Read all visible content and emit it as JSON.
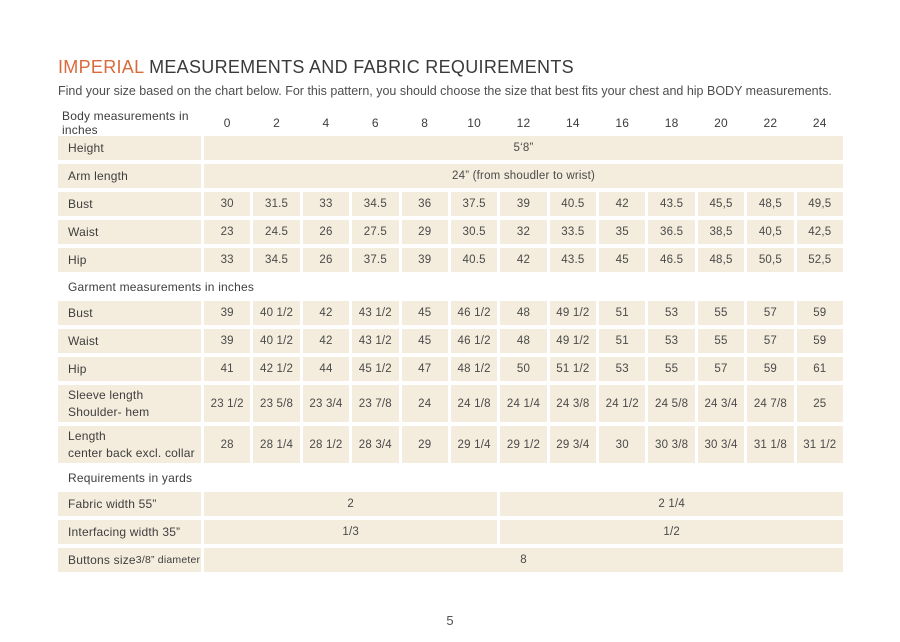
{
  "page": {
    "title_highlight": "IMPERIAL",
    "title_rest": " MEASUREMENTS AND FABRIC REQUIREMENTS",
    "subtitle": "Find your size based on the chart below. For this pattern, you should choose the size that best fits your chest and hip BODY measurements.",
    "page_number": "5"
  },
  "colors": {
    "accent_orange": "#d96a3c",
    "cell_beige": "#f4ecdd",
    "text_dark": "#3e3e3e"
  },
  "table": {
    "rows": [
      {
        "type": "header",
        "label": "Body measurements in inches",
        "cells": [
          "0",
          "2",
          "4",
          "6",
          "8",
          "10",
          "12",
          "14",
          "16",
          "18",
          "20",
          "22",
          "24"
        ]
      },
      {
        "type": "span",
        "label": "Height",
        "value": "5‘8”"
      },
      {
        "type": "span",
        "label": "Arm length",
        "value": "24” (from shoudler to wrist)"
      },
      {
        "type": "data",
        "label": "Bust",
        "cells": [
          "30",
          "31.5",
          "33",
          "34.5",
          "36",
          "37.5",
          "39",
          "40.5",
          "42",
          "43.5",
          "45,5",
          "48,5",
          "49,5"
        ]
      },
      {
        "type": "data",
        "label": "Waist",
        "cells": [
          "23",
          "24.5",
          "26",
          "27.5",
          "29",
          "30.5",
          "32",
          "33.5",
          "35",
          "36.5",
          "38,5",
          "40,5",
          "42,5"
        ]
      },
      {
        "type": "data",
        "label": "Hip",
        "cells": [
          "33",
          "34.5",
          "26",
          "37.5",
          "39",
          "40.5",
          "42",
          "43.5",
          "45",
          "46.5",
          "48,5",
          "50,5",
          "52,5"
        ]
      },
      {
        "type": "section",
        "label": "Garment measurements in inches"
      },
      {
        "type": "data",
        "label": "Bust",
        "cells": [
          "39",
          "40 1/2",
          "42",
          "43 1/2",
          "45",
          "46 1/2",
          "48",
          "49 1/2",
          "51",
          "53",
          "55",
          "57",
          "59"
        ]
      },
      {
        "type": "data",
        "label": "Waist",
        "cells": [
          "39",
          "40 1/2",
          "42",
          "43 1/2",
          "45",
          "46 1/2",
          "48",
          "49 1/2",
          "51",
          "53",
          "55",
          "57",
          "59"
        ]
      },
      {
        "type": "data",
        "label": "Hip",
        "cells": [
          "41",
          "42 1/2",
          "44",
          "45 1/2",
          "47",
          "48 1/2",
          "50",
          "51 1/2",
          "53",
          "55",
          "57",
          "59",
          "61"
        ]
      },
      {
        "type": "data",
        "tall": true,
        "label": "Sleeve length",
        "sublabel": "Shoulder- hem",
        "cells": [
          "23 1/2",
          "23 5/8",
          "23 3/4",
          "23 7/8",
          "24",
          "24 1/8",
          "24 1/4",
          "24 3/8",
          "24 1/2",
          "24 5/8",
          "24 3/4",
          "24 7/8",
          "25"
        ]
      },
      {
        "type": "data",
        "tall": true,
        "label": "Length",
        "sublabel": "center back excl. collar",
        "cells": [
          "28",
          "28 1/4",
          "28 1/2",
          "28 3/4",
          "29",
          "29 1/4",
          "29 1/2",
          "29 3/4",
          "30",
          "30 3/8",
          "30 3/4",
          "31 1/8",
          "31 1/2"
        ]
      },
      {
        "type": "section",
        "label": "Requirements in yards"
      },
      {
        "type": "split",
        "label": "Fabric width 55”",
        "left": "2",
        "right": "2 1/4"
      },
      {
        "type": "split",
        "label": "Interfacing width 35”",
        "left": "1/3",
        "right": "1/2"
      },
      {
        "type": "span",
        "label": "Buttons size",
        "label_small": "3/8” diameter",
        "value": "8"
      }
    ]
  }
}
